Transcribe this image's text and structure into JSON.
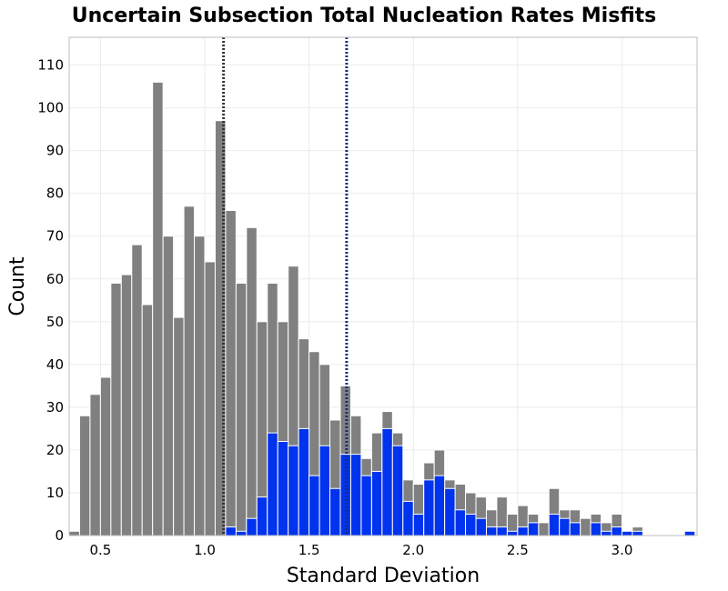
{
  "chart_data": {
    "type": "bar",
    "title": "Uncertain Subsection Total Nucleation Rates Misfits",
    "xlabel": "Standard Deviation",
    "ylabel": "Count",
    "xlim": [
      0.35,
      3.36
    ],
    "ylim": [
      0,
      116.5
    ],
    "bin_width": 0.05,
    "x_ticks": [
      "0.5",
      "1.0",
      "1.5",
      "2.0",
      "2.5",
      "3.0"
    ],
    "x_tick_values": [
      0.5,
      1.0,
      1.5,
      2.0,
      2.5,
      3.0
    ],
    "y_ticks": [
      "0",
      "10",
      "20",
      "30",
      "40",
      "50",
      "60",
      "70",
      "80",
      "90",
      "100",
      "110"
    ],
    "y_tick_values": [
      0,
      10,
      20,
      30,
      40,
      50,
      60,
      70,
      80,
      90,
      100,
      110
    ],
    "grid": true,
    "series": [
      {
        "color": "#808080",
        "bins": [
          [
            0.375,
            1
          ],
          [
            0.425,
            28
          ],
          [
            0.475,
            33
          ],
          [
            0.525,
            37
          ],
          [
            0.575,
            59
          ],
          [
            0.625,
            61
          ],
          [
            0.675,
            68
          ],
          [
            0.725,
            54
          ],
          [
            0.775,
            106
          ],
          [
            0.825,
            70
          ],
          [
            0.875,
            51
          ],
          [
            0.925,
            77
          ],
          [
            0.975,
            70
          ],
          [
            1.025,
            64
          ],
          [
            1.075,
            97
          ],
          [
            1.125,
            76
          ],
          [
            1.175,
            59
          ],
          [
            1.225,
            72
          ],
          [
            1.275,
            50
          ],
          [
            1.325,
            59
          ],
          [
            1.375,
            50
          ],
          [
            1.425,
            63
          ],
          [
            1.475,
            46
          ],
          [
            1.525,
            43
          ],
          [
            1.575,
            40
          ],
          [
            1.625,
            27
          ],
          [
            1.675,
            35
          ],
          [
            1.725,
            28
          ],
          [
            1.775,
            18
          ],
          [
            1.825,
            24
          ],
          [
            1.875,
            29
          ],
          [
            1.925,
            24
          ],
          [
            1.975,
            13
          ],
          [
            2.025,
            12
          ],
          [
            2.075,
            17
          ],
          [
            2.125,
            20
          ],
          [
            2.175,
            13
          ],
          [
            2.225,
            12
          ],
          [
            2.275,
            10
          ],
          [
            2.325,
            9
          ],
          [
            2.375,
            6
          ],
          [
            2.425,
            9
          ],
          [
            2.475,
            5
          ],
          [
            2.525,
            7
          ],
          [
            2.575,
            5
          ],
          [
            2.625,
            3
          ],
          [
            2.675,
            11
          ],
          [
            2.725,
            6
          ],
          [
            2.775,
            6
          ],
          [
            2.825,
            4
          ],
          [
            2.875,
            5
          ],
          [
            2.925,
            3
          ],
          [
            2.975,
            5
          ],
          [
            3.025,
            1
          ],
          [
            3.075,
            2
          ],
          [
            3.325,
            1
          ]
        ]
      },
      {
        "color": "#0033ee",
        "bins": [
          [
            1.125,
            2
          ],
          [
            1.175,
            1
          ],
          [
            1.225,
            4
          ],
          [
            1.275,
            9
          ],
          [
            1.325,
            24
          ],
          [
            1.375,
            22
          ],
          [
            1.425,
            21
          ],
          [
            1.475,
            25
          ],
          [
            1.525,
            14
          ],
          [
            1.575,
            21
          ],
          [
            1.625,
            11
          ],
          [
            1.675,
            19
          ],
          [
            1.725,
            19
          ],
          [
            1.775,
            14
          ],
          [
            1.825,
            15
          ],
          [
            1.875,
            25
          ],
          [
            1.925,
            21
          ],
          [
            1.975,
            8
          ],
          [
            2.025,
            5
          ],
          [
            2.075,
            13
          ],
          [
            2.125,
            14
          ],
          [
            2.175,
            11
          ],
          [
            2.225,
            6
          ],
          [
            2.275,
            5
          ],
          [
            2.325,
            4
          ],
          [
            2.375,
            2
          ],
          [
            2.425,
            2
          ],
          [
            2.475,
            1
          ],
          [
            2.525,
            2
          ],
          [
            2.575,
            3
          ],
          [
            2.675,
            5
          ],
          [
            2.725,
            4
          ],
          [
            2.775,
            3
          ],
          [
            2.875,
            3
          ],
          [
            2.925,
            1
          ],
          [
            2.975,
            2
          ],
          [
            3.025,
            1
          ],
          [
            3.075,
            1
          ],
          [
            3.325,
            1
          ]
        ]
      }
    ],
    "vertical_lines": [
      {
        "x": 1.09,
        "color": "#333333",
        "style": "dotted"
      },
      {
        "x": 1.68,
        "color": "#1a2a7a",
        "style": "dotted"
      }
    ]
  }
}
